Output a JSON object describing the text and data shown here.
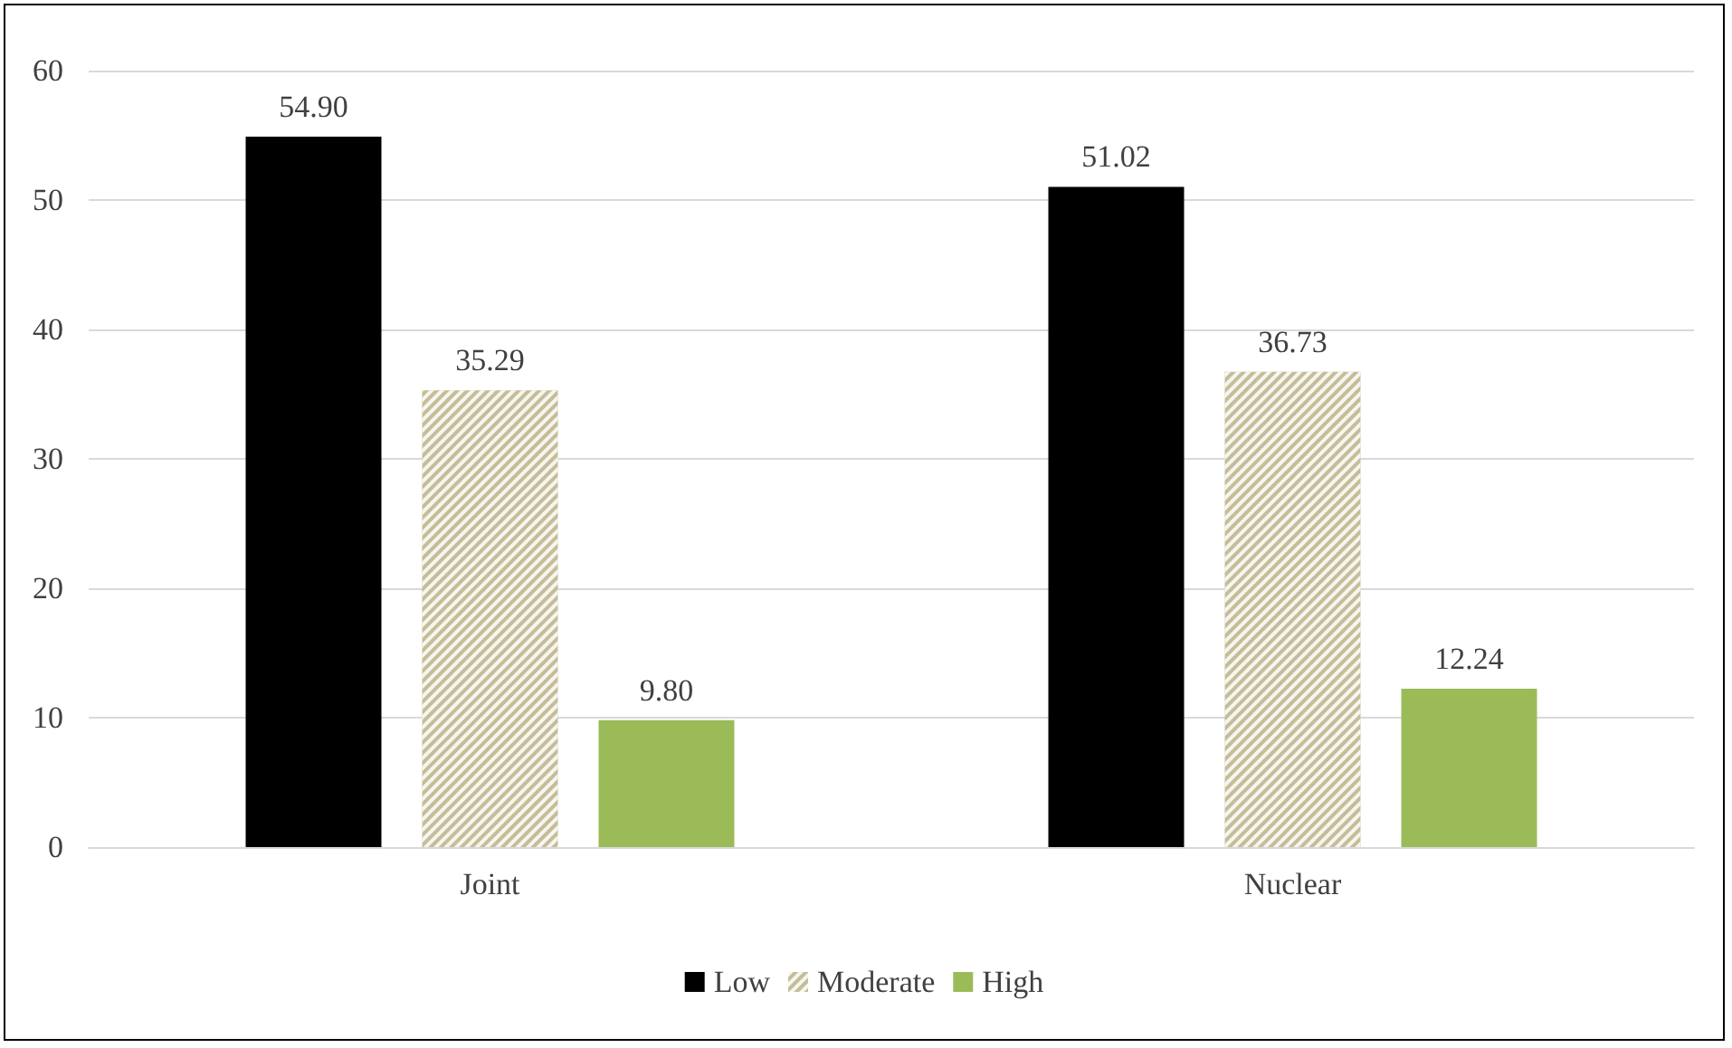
{
  "chart_data": {
    "type": "bar",
    "categories": [
      "Joint",
      "Nuclear"
    ],
    "series": [
      {
        "name": "Low",
        "color": "#000000",
        "values": [
          54.9,
          51.02
        ],
        "value_labels": [
          "54.90",
          "51.02"
        ]
      },
      {
        "name": "Moderate",
        "color": "#c4bd97",
        "values": [
          35.29,
          36.73
        ],
        "value_labels": [
          "35.29",
          "36.73"
        ]
      },
      {
        "name": "High",
        "color": "#9bbb59",
        "values": [
          9.8,
          12.24
        ],
        "value_labels": [
          "9.80",
          "12.24"
        ]
      }
    ],
    "ylim": [
      0,
      60
    ],
    "yticks": [
      0,
      10,
      20,
      30,
      40,
      50,
      60
    ],
    "grid": "y",
    "legend": "bottom"
  }
}
